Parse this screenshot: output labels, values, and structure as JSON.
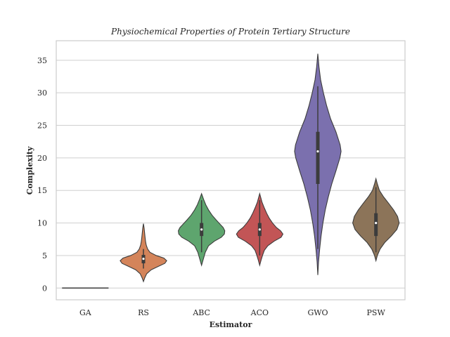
{
  "chart_data": {
    "type": "violin",
    "title": "Physiochemical Properties of Protein Tertiary Structure",
    "xlabel": "Estimator",
    "ylabel": "Complexity",
    "ylim": [
      -1.8,
      38
    ],
    "yticks": [
      0,
      5,
      10,
      15,
      20,
      25,
      30,
      35
    ],
    "grid": true,
    "categories": [
      "GA",
      "RS",
      "ABC",
      "ACO",
      "GWO",
      "PSW"
    ],
    "series": [
      {
        "category": "GA",
        "color": "#5a72a8",
        "min": 0,
        "max": 0,
        "q1": 0,
        "median": 0,
        "q3": 0,
        "whisker_low": 0,
        "whisker_high": 0,
        "profile": [
          [
            0,
            1
          ]
        ]
      },
      {
        "category": "RS",
        "color": "#d4845a",
        "min": 1,
        "max": 9.9,
        "q1": 3.8,
        "median": 4.5,
        "q3": 5.1,
        "whisker_low": 3,
        "whisker_high": 6,
        "profile": [
          [
            1,
            0
          ],
          [
            1.6,
            0.06
          ],
          [
            2.2,
            0.14
          ],
          [
            2.8,
            0.33
          ],
          [
            3.3,
            0.62
          ],
          [
            3.8,
            0.92
          ],
          [
            4.2,
            1
          ],
          [
            4.6,
            0.88
          ],
          [
            5,
            0.55
          ],
          [
            5.5,
            0.28
          ],
          [
            6,
            0.18
          ],
          [
            6.6,
            0.12
          ],
          [
            7.2,
            0.09
          ],
          [
            7.8,
            0.07
          ],
          [
            8.5,
            0.05
          ],
          [
            9.2,
            0.03
          ],
          [
            9.9,
            0
          ]
        ]
      },
      {
        "category": "ABC",
        "color": "#5ea56e",
        "min": 3.5,
        "max": 14.5,
        "q1": 8,
        "median": 9,
        "q3": 10,
        "whisker_low": 5.5,
        "whisker_high": 13.5,
        "profile": [
          [
            3.5,
            0
          ],
          [
            4.5,
            0.08
          ],
          [
            5.5,
            0.16
          ],
          [
            6.5,
            0.3
          ],
          [
            7.2,
            0.55
          ],
          [
            7.8,
            0.85
          ],
          [
            8.3,
            0.98
          ],
          [
            8.8,
            1
          ],
          [
            9.3,
            0.93
          ],
          [
            9.8,
            0.8
          ],
          [
            10.5,
            0.62
          ],
          [
            11.2,
            0.45
          ],
          [
            12,
            0.3
          ],
          [
            12.8,
            0.18
          ],
          [
            13.6,
            0.09
          ],
          [
            14.5,
            0
          ]
        ]
      },
      {
        "category": "ACO",
        "color": "#c25556",
        "min": 3.5,
        "max": 14.5,
        "q1": 8,
        "median": 9,
        "q3": 10,
        "whisker_low": 5,
        "whisker_high": 13.5,
        "profile": [
          [
            3.5,
            0
          ],
          [
            4.3,
            0.06
          ],
          [
            5,
            0.12
          ],
          [
            5.8,
            0.2
          ],
          [
            6.5,
            0.35
          ],
          [
            7.2,
            0.62
          ],
          [
            7.8,
            0.92
          ],
          [
            8.3,
            1
          ],
          [
            8.8,
            0.9
          ],
          [
            9.3,
            0.72
          ],
          [
            10,
            0.55
          ],
          [
            10.8,
            0.4
          ],
          [
            11.5,
            0.3
          ],
          [
            12.3,
            0.2
          ],
          [
            13.2,
            0.1
          ],
          [
            14.5,
            0
          ]
        ]
      },
      {
        "category": "GWO",
        "color": "#7b70ae",
        "min": 2,
        "max": 36,
        "q1": 16,
        "median": 21,
        "q3": 24,
        "whisker_low": 6,
        "whisker_high": 31,
        "profile": [
          [
            2,
            0
          ],
          [
            4,
            0.03
          ],
          [
            6,
            0.08
          ],
          [
            8,
            0.14
          ],
          [
            10,
            0.22
          ],
          [
            12,
            0.32
          ],
          [
            14,
            0.45
          ],
          [
            16,
            0.6
          ],
          [
            18,
            0.78
          ],
          [
            20,
            0.95
          ],
          [
            21,
            1
          ],
          [
            22,
            0.96
          ],
          [
            24,
            0.78
          ],
          [
            26,
            0.55
          ],
          [
            28,
            0.38
          ],
          [
            30,
            0.24
          ],
          [
            32,
            0.12
          ],
          [
            34,
            0.05
          ],
          [
            36,
            0
          ]
        ]
      },
      {
        "category": "PSW",
        "color": "#8c7459",
        "min": 4.2,
        "max": 16.8,
        "q1": 8,
        "median": 10,
        "q3": 11.5,
        "whisker_low": 5.5,
        "whisker_high": 15.5,
        "profile": [
          [
            4.2,
            0
          ],
          [
            5,
            0.06
          ],
          [
            6,
            0.18
          ],
          [
            7,
            0.38
          ],
          [
            8,
            0.66
          ],
          [
            9,
            0.9
          ],
          [
            10,
            1
          ],
          [
            11,
            0.93
          ],
          [
            12,
            0.76
          ],
          [
            13,
            0.55
          ],
          [
            14,
            0.33
          ],
          [
            15,
            0.15
          ],
          [
            16,
            0.06
          ],
          [
            16.8,
            0
          ]
        ]
      }
    ]
  }
}
